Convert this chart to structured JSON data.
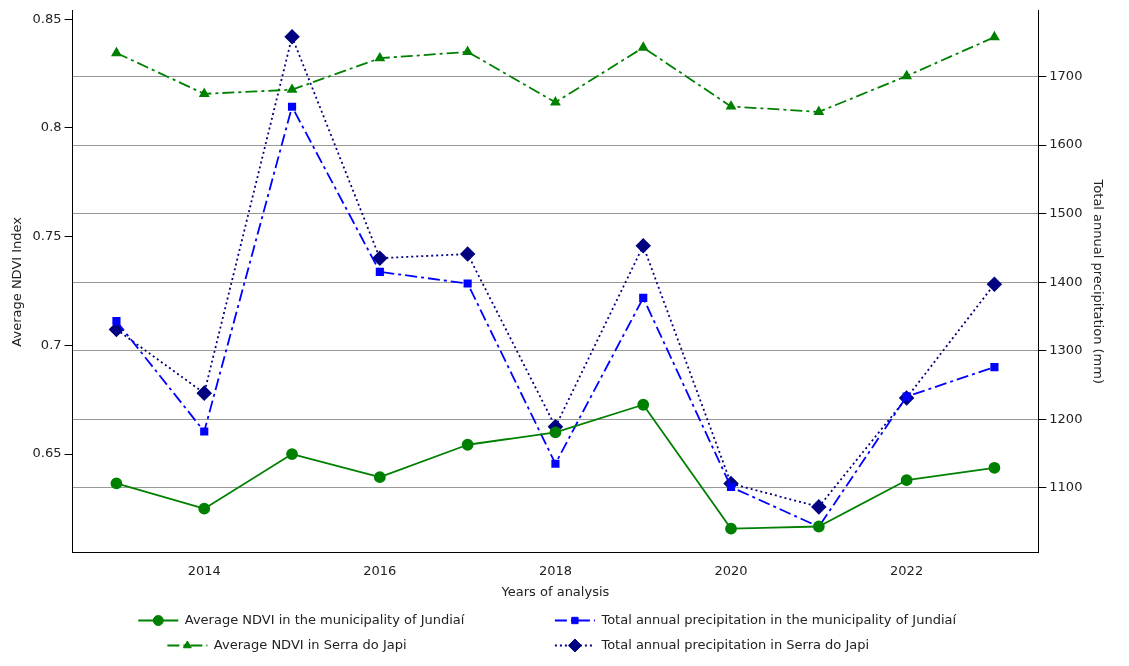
{
  "chart_data": {
    "type": "line",
    "xlabel": "Years of analysis",
    "ylabel": "Average NDVI Index",
    "y2label": "Total annual precipitation (mm)",
    "x": [
      2013,
      2014,
      2015,
      2016,
      2017,
      2018,
      2019,
      2020,
      2021,
      2022,
      2023
    ],
    "xlim": [
      2012.5,
      2023.5
    ],
    "xticks": [
      2014,
      2016,
      2018,
      2020,
      2022
    ],
    "ylim": [
      0.6046,
      0.8539
    ],
    "yticks": [
      0.65,
      0.7,
      0.75,
      0.8,
      0.85
    ],
    "y2lim": [
      1005,
      1796
    ],
    "y2ticks": [
      1100,
      1200,
      1300,
      1400,
      1500,
      1600,
      1700
    ],
    "grid": "y",
    "legend": "bottom",
    "series": [
      {
        "name": "Average NDVI in the municipality of Jundiaí",
        "color": "#008000",
        "marker": "circle",
        "line_style": "solid",
        "values": [
          0.6365,
          0.6249,
          0.65,
          0.6394,
          0.6543,
          0.66,
          0.6727,
          0.6157,
          0.6167,
          0.638,
          0.6437
        ]
      },
      {
        "name": "Average NDVI in Serra do Japi",
        "color": "#008000",
        "marker": "triangle",
        "line_style": "dashed",
        "values": [
          0.8345,
          0.8157,
          0.8176,
          0.8321,
          0.835,
          0.8118,
          0.837,
          0.8099,
          0.8074,
          0.8239,
          0.8418
        ]
      },
      {
        "name": "Total annual precipitation in the municipality of Jundiaí",
        "color": "#0000ff",
        "marker": "square",
        "line_style": "dashed",
        "axis": "y2",
        "values": [
          1343,
          1182,
          1656,
          1415,
          1398,
          1135,
          1377,
          1101,
          1043,
          1233,
          1276
        ]
      },
      {
        "name": "Total annual precipitation in Serra do Japi",
        "color": "#000080",
        "marker": "diamond",
        "line_style": "dotted",
        "axis": "y2",
        "values": [
          1331,
          1238,
          1758,
          1435,
          1441,
          1189,
          1453,
          1106,
          1072,
          1231,
          1397
        ]
      }
    ]
  }
}
